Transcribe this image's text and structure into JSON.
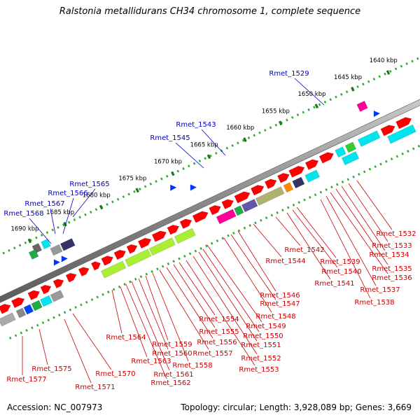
{
  "title": "Ralstonia metallidurans CH34 chromosome 1, complete sequence",
  "footer": {
    "accession": "Accession: NC_007973",
    "stats": "Topology: circular; Length: 3,928,089 bp; Genes: 3,669"
  },
  "colors": {
    "backbone": "#7a7a7a",
    "forward_gene": "#ff0000",
    "reverse_gene": "#ff0000",
    "top_label": "#0000cc",
    "bottom_label": "#cc0000",
    "ruler_major": "#1a7a1a",
    "ruler_minor": "#33aa33",
    "strand_marker": "#0033ff"
  },
  "ruler_ticks": [
    {
      "kbp": 1640,
      "label": "1640 kbp"
    },
    {
      "kbp": 1645,
      "label": "1645 kbp"
    },
    {
      "kbp": 1650,
      "label": "1650 kbp"
    },
    {
      "kbp": 1655,
      "label": "1655 kbp"
    },
    {
      "kbp": 1660,
      "label": "1660 kbp"
    },
    {
      "kbp": 1665,
      "label": "1665 kbp"
    },
    {
      "kbp": 1670,
      "label": "1670 kbp"
    },
    {
      "kbp": 1675,
      "label": "1675 kbp"
    },
    {
      "kbp": 1680,
      "label": "1680 kbp"
    },
    {
      "kbp": 1685,
      "label": "1685 kbp"
    },
    {
      "kbp": 1690,
      "label": "1690 kbp"
    }
  ],
  "top_labels": [
    "Rmet_1529",
    "Rmet_1543",
    "Rmet_1545",
    "Rmet_1565",
    "Rmet_1566",
    "Rmet_1567",
    "Rmet_1568"
  ],
  "bottom_labels": [
    "Rmet_1532",
    "Rmet_1533",
    "Rmet_1534",
    "Rmet_1535",
    "Rmet_1536",
    "Rmet_1537",
    "Rmet_1538",
    "Rmet_1539",
    "Rmet_1540",
    "Rmet_1541",
    "Rmet_1542",
    "Rmet_1544",
    "Rmet_1546",
    "Rmet_1547",
    "Rmet_1548",
    "Rmet_1549",
    "Rmet_1550",
    "Rmet_1551",
    "Rmet_1552",
    "Rmet_1553",
    "Rmet_1554",
    "Rmet_1555",
    "Rmet_1556",
    "Rmet_1557",
    "Rmet_1558",
    "Rmet_1559",
    "Rmet_1560",
    "Rmet_1561",
    "Rmet_1562",
    "Rmet_1563",
    "Rmet_1564",
    "Rmet_1570",
    "Rmet_1571",
    "Rmet_1575",
    "Rmet_1577"
  ]
}
